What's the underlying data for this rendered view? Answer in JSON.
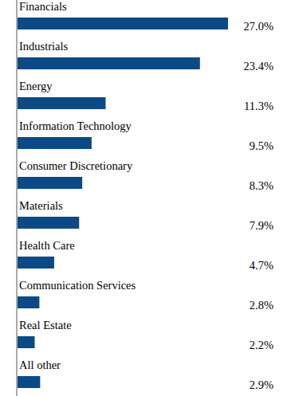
{
  "chart_data": {
    "type": "bar",
    "orientation": "horizontal",
    "categories": [
      "Financials",
      "Industrials",
      "Energy",
      "Information Technology",
      "Consumer Discretionary",
      "Materials",
      "Health Care",
      "Communication Services",
      "Real Estate",
      "All other"
    ],
    "values": [
      27.0,
      23.4,
      11.3,
      9.5,
      8.3,
      7.9,
      4.7,
      2.8,
      2.2,
      2.9
    ],
    "value_labels": [
      "27.0%",
      "23.4%",
      "11.3%",
      "9.5%",
      "8.3%",
      "7.9%",
      "4.7%",
      "2.8%",
      "2.2%",
      "2.9%"
    ],
    "color": "#0c4a85",
    "data_labels": true,
    "tick_labels": false,
    "grid": false
  }
}
